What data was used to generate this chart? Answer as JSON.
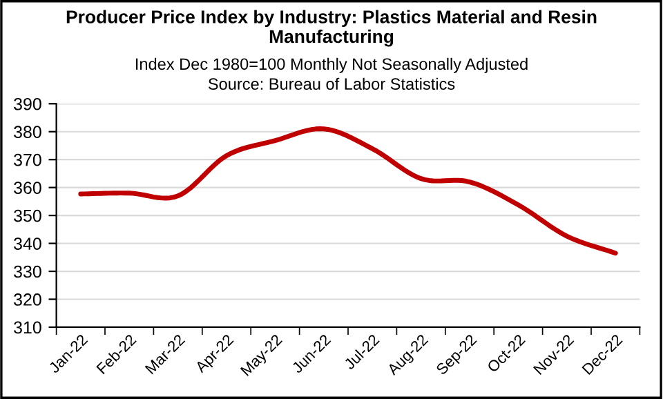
{
  "chart_data": {
    "type": "line",
    "title": "Producer Price Index by Industry: Plastics Material and Resin Manufacturing",
    "subtitle": "Index Dec 1980=100 Monthly Not Seasonally Adjusted",
    "annotations": [
      "Source: Bureau of Labor Statistics"
    ],
    "categories": [
      "Jan-22",
      "Feb-22",
      "Mar-22",
      "Apr-22",
      "May-22",
      "Jun-22",
      "Jul-22",
      "Aug-22",
      "Sep-22",
      "Oct-22",
      "Nov-22",
      "Dec-22"
    ],
    "series": [
      {
        "color": "#c00000",
        "values": [
          357.7,
          358,
          357,
          371.4,
          376.8,
          381,
          373.9,
          363.2,
          362,
          353.8,
          342.6,
          336.5
        ]
      }
    ],
    "ylim": [
      310,
      390
    ],
    "yticks": [
      310,
      320,
      330,
      340,
      350,
      360,
      370,
      380,
      390
    ],
    "grid": "y",
    "marker": "none",
    "line_style": "solid"
  }
}
